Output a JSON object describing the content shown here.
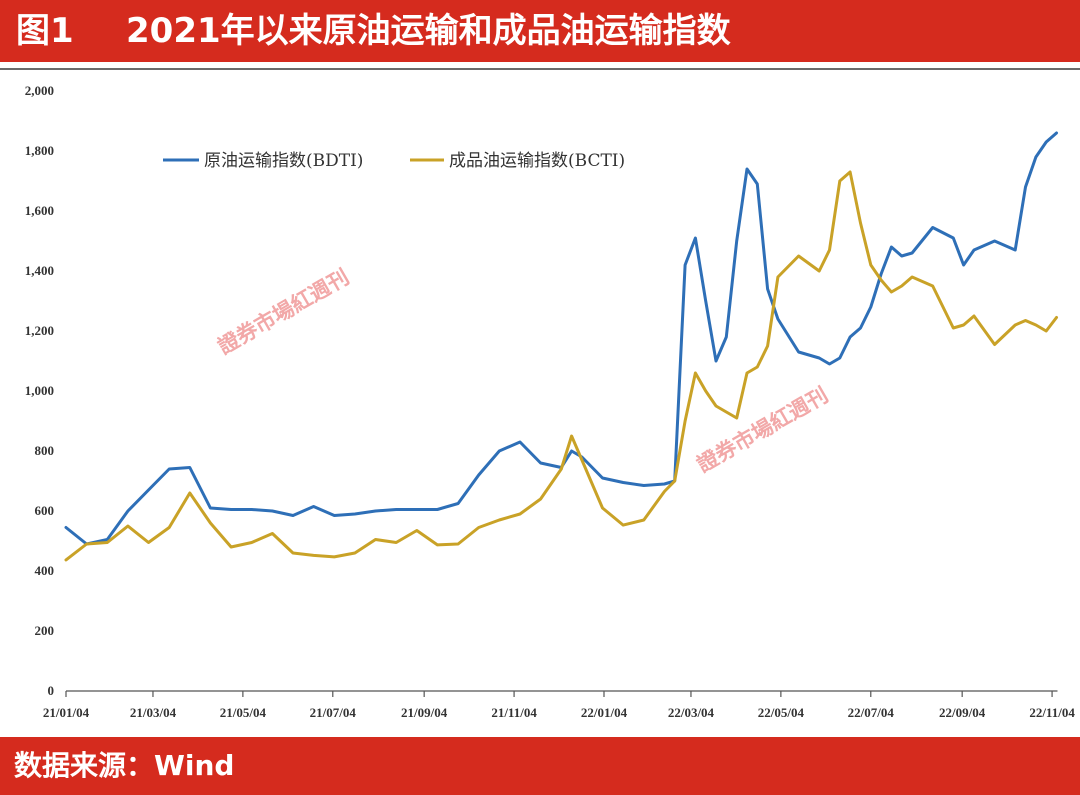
{
  "header": {
    "figure_no": "图1",
    "title": "2021年以来原油运输和成品油运输指数"
  },
  "footer": {
    "source": "数据来源：Wind"
  },
  "watermark": {
    "text": "證券市場紅週刊"
  },
  "colors": {
    "header_bg": "#d52b1e",
    "footer_bg": "#d52b1e",
    "axis": "#555555"
  },
  "chart_data": {
    "type": "line",
    "xlabel": "",
    "ylabel": "",
    "xlim": [
      "2021-01-04",
      "2022-11-07"
    ],
    "ylim": [
      0,
      2000
    ],
    "grid": false,
    "legend": "top-left",
    "y_ticks": [
      0,
      200,
      400,
      600,
      800,
      1000,
      1200,
      1400,
      1600,
      1800,
      2000
    ],
    "x_ticks": [
      {
        "value": "2021-01-04",
        "label": "21/01/04"
      },
      {
        "value": "2021-03-04",
        "label": "21/03/04"
      },
      {
        "value": "2021-05-04",
        "label": "21/05/04"
      },
      {
        "value": "2021-07-04",
        "label": "21/07/04"
      },
      {
        "value": "2021-09-04",
        "label": "21/09/04"
      },
      {
        "value": "2021-11-04",
        "label": "21/11/04"
      },
      {
        "value": "2022-01-04",
        "label": "22/01/04"
      },
      {
        "value": "2022-03-04",
        "label": "22/03/04"
      },
      {
        "value": "2022-05-04",
        "label": "22/05/04"
      },
      {
        "value": "2022-07-04",
        "label": "22/07/04"
      },
      {
        "value": "2022-09-04",
        "label": "22/09/04"
      },
      {
        "value": "2022-11-04",
        "label": "22/11/04"
      }
    ],
    "x": [
      "2021-01-04",
      "2021-01-18",
      "2021-02-01",
      "2021-02-15",
      "2021-03-01",
      "2021-03-15",
      "2021-03-29",
      "2021-04-12",
      "2021-04-26",
      "2021-05-10",
      "2021-05-24",
      "2021-06-07",
      "2021-06-21",
      "2021-07-05",
      "2021-07-19",
      "2021-08-02",
      "2021-08-16",
      "2021-08-30",
      "2021-09-13",
      "2021-09-27",
      "2021-10-11",
      "2021-10-25",
      "2021-11-08",
      "2021-11-22",
      "2021-12-06",
      "2021-12-13",
      "2021-12-20",
      "2022-01-03",
      "2022-01-17",
      "2022-01-31",
      "2022-02-14",
      "2022-02-21",
      "2022-02-28",
      "2022-03-07",
      "2022-03-14",
      "2022-03-21",
      "2022-03-28",
      "2022-04-04",
      "2022-04-11",
      "2022-04-18",
      "2022-04-25",
      "2022-05-02",
      "2022-05-16",
      "2022-05-30",
      "2022-06-06",
      "2022-06-13",
      "2022-06-20",
      "2022-06-27",
      "2022-07-04",
      "2022-07-11",
      "2022-07-18",
      "2022-07-25",
      "2022-08-01",
      "2022-08-15",
      "2022-08-29",
      "2022-09-05",
      "2022-09-12",
      "2022-09-26",
      "2022-10-10",
      "2022-10-17",
      "2022-10-24",
      "2022-10-31",
      "2022-11-07"
    ],
    "series": [
      {
        "name": "原油运输指数(BDTI)",
        "color": "#2e6fb7",
        "values": [
          545,
          490,
          505,
          600,
          670,
          740,
          745,
          610,
          605,
          605,
          600,
          585,
          615,
          585,
          590,
          600,
          605,
          605,
          605,
          625,
          720,
          800,
          830,
          760,
          745,
          800,
          780,
          710,
          695,
          685,
          690,
          700,
          1420,
          1510,
          1300,
          1100,
          1180,
          1500,
          1740,
          1690,
          1340,
          1240,
          1130,
          1110,
          1090,
          1110,
          1180,
          1210,
          1280,
          1390,
          1480,
          1450,
          1460,
          1545,
          1510,
          1420,
          1470,
          1500,
          1470,
          1680,
          1780,
          1830,
          1860
        ]
      },
      {
        "name": "成品油运输指数(BCTI)",
        "color": "#c9a227",
        "values": [
          437,
          490,
          495,
          550,
          495,
          545,
          660,
          560,
          480,
          495,
          525,
          460,
          452,
          447,
          460,
          505,
          495,
          535,
          487,
          490,
          545,
          570,
          590,
          640,
          740,
          850,
          770,
          610,
          553,
          570,
          665,
          700,
          900,
          1060,
          1000,
          950,
          930,
          910,
          1060,
          1080,
          1150,
          1380,
          1450,
          1400,
          1470,
          1700,
          1730,
          1560,
          1420,
          1370,
          1330,
          1350,
          1380,
          1350,
          1210,
          1220,
          1250,
          1155,
          1220,
          1235,
          1220,
          1200,
          1245
        ]
      }
    ]
  }
}
